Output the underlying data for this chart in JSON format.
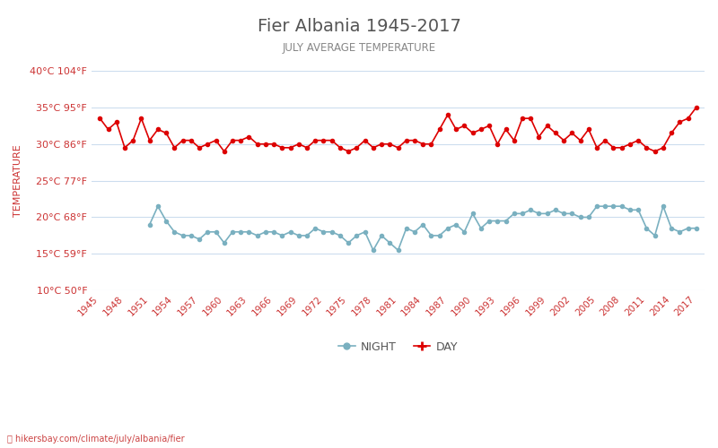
{
  "title": "Fier Albania 1945-2017",
  "subtitle": "JULY AVERAGE TEMPERATURE",
  "ylabel": "TEMPERATURE",
  "watermark": "hikersbay.com/climate/july/albania/fier",
  "years": [
    1945,
    1946,
    1947,
    1948,
    1949,
    1950,
    1951,
    1952,
    1953,
    1954,
    1955,
    1956,
    1957,
    1958,
    1959,
    1960,
    1961,
    1962,
    1963,
    1964,
    1965,
    1966,
    1967,
    1968,
    1969,
    1970,
    1971,
    1972,
    1973,
    1974,
    1975,
    1976,
    1977,
    1978,
    1979,
    1980,
    1981,
    1982,
    1983,
    1984,
    1985,
    1986,
    1987,
    1988,
    1989,
    1990,
    1991,
    1992,
    1993,
    1994,
    1995,
    1996,
    1997,
    1998,
    1999,
    2000,
    2001,
    2002,
    2003,
    2004,
    2005,
    2006,
    2007,
    2008,
    2009,
    2010,
    2011,
    2012,
    2013,
    2014,
    2015,
    2016,
    2017
  ],
  "day_temps": [
    33.5,
    32.0,
    33.0,
    29.5,
    30.5,
    33.5,
    30.5,
    32.0,
    31.5,
    29.5,
    30.5,
    30.5,
    29.5,
    30.0,
    30.5,
    29.0,
    30.5,
    30.5,
    31.0,
    30.0,
    30.0,
    30.0,
    29.5,
    29.5,
    30.0,
    29.5,
    30.5,
    30.5,
    30.5,
    29.5,
    29.0,
    29.5,
    30.5,
    29.5,
    30.0,
    30.0,
    29.5,
    30.5,
    30.5,
    30.0,
    30.0,
    32.0,
    34.0,
    32.0,
    32.5,
    31.5,
    32.0,
    32.5,
    30.0,
    32.0,
    30.5,
    33.5,
    33.5,
    31.0,
    32.5,
    31.5,
    30.5,
    31.5,
    30.5,
    32.0,
    29.5,
    30.5,
    29.5,
    29.5,
    30.0,
    30.5,
    29.5,
    29.0,
    29.5,
    31.5,
    33.0,
    33.5,
    35.0
  ],
  "night_temps": [
    null,
    null,
    null,
    null,
    null,
    null,
    19.0,
    21.5,
    19.5,
    18.0,
    17.5,
    17.5,
    17.0,
    18.0,
    18.0,
    16.5,
    18.0,
    18.0,
    18.0,
    17.5,
    18.0,
    18.0,
    17.5,
    18.0,
    17.5,
    17.5,
    18.5,
    18.0,
    18.0,
    17.5,
    16.5,
    17.5,
    18.0,
    15.5,
    17.5,
    16.5,
    15.5,
    18.5,
    18.0,
    19.0,
    17.5,
    17.5,
    18.5,
    19.0,
    18.0,
    20.5,
    18.5,
    19.5,
    19.5,
    19.5,
    20.5,
    20.5,
    21.0,
    20.5,
    20.5,
    21.0,
    20.5,
    20.5,
    20.0,
    20.0,
    21.5,
    21.5,
    21.5,
    21.5,
    21.0,
    21.0,
    18.5,
    17.5,
    21.5,
    18.5,
    18.0,
    18.5,
    18.5
  ],
  "ylim_min": 10,
  "ylim_max": 40,
  "yticks_c": [
    10,
    15,
    20,
    25,
    30,
    35,
    40
  ],
  "yticks_f": [
    50,
    59,
    68,
    77,
    86,
    95,
    104
  ],
  "background_color": "#ffffff",
  "grid_color": "#ccddee",
  "day_color": "#dd0000",
  "night_color": "#7ab0c0",
  "title_color": "#555555",
  "subtitle_color": "#888888",
  "label_color": "#cc3333",
  "watermark_color": "#cc4444",
  "tick_color": "#cc3333"
}
